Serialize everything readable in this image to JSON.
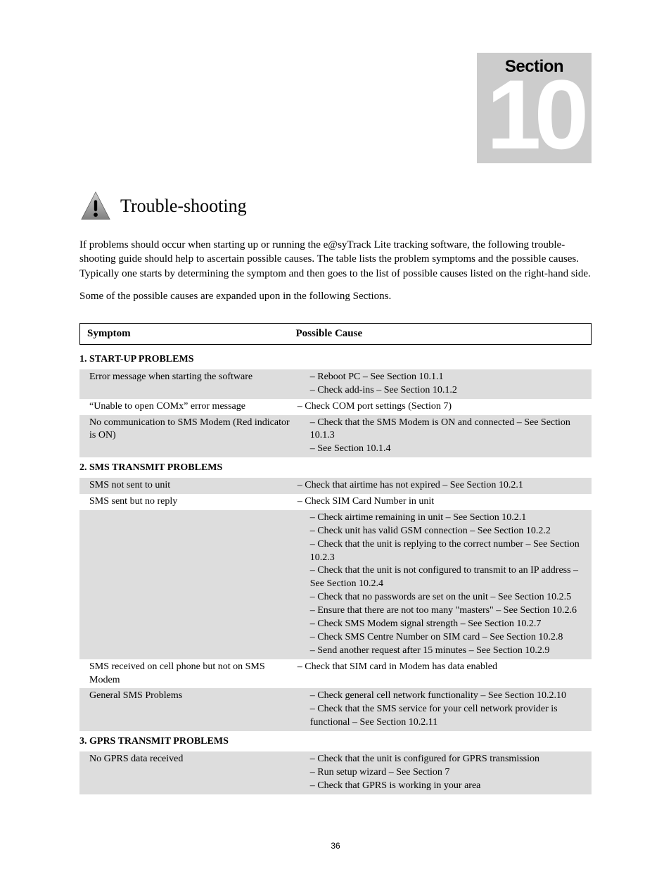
{
  "badge": {
    "label": "Section",
    "number": "10"
  },
  "title": "Trouble-shooting",
  "intro": {
    "p1": "If problems should occur when starting up or running the e@syTrack Lite tracking software, the following trouble-shooting guide should help to ascertain possible causes. The table lists the problem symptoms and the possible causes. Typically one starts by determining the symptom and then goes to the list of possible causes listed on the right-hand side.",
    "p2": "Some of the possible causes are expanded upon in the following Sections."
  },
  "headers": {
    "symptom": "Symptom",
    "cause": "Possible Cause"
  },
  "sections": [
    {
      "title": "1.  START-UP PROBLEMS",
      "shaded": false,
      "rows": [
        {
          "shaded": true,
          "symptom": "Error message when starting the software",
          "causes": [
            "Reboot PC – See Section 10.1.1",
            "Check add-ins – See Section 10.1.2"
          ]
        },
        {
          "shaded": false,
          "symptom": "“Unable to open COMx” error message",
          "causes": [
            "Check COM port settings (Section 7)"
          ]
        },
        {
          "shaded": true,
          "symptom": "No communication to SMS Modem (Red indicator is ON)",
          "causes": [
            "Check that the SMS Modem is ON and connected – See Section 10.1.3",
            "See Section 10.1.4"
          ]
        }
      ]
    },
    {
      "title": "2.  SMS TRANSMIT PROBLEMS",
      "shaded": false,
      "rows": [
        {
          "shaded": true,
          "symptom": "SMS not sent to unit",
          "causes": [
            "Check that airtime has not expired – See Section 10.2.1"
          ]
        },
        {
          "shaded": false,
          "symptom": "SMS sent but no reply",
          "causes": [
            "Check SIM Card Number in unit"
          ]
        },
        {
          "shaded": true,
          "symptom": "",
          "causes": [
            "Check airtime remaining in unit – See Section 10.2.1",
            "Check unit has valid GSM connection – See Section 10.2.2",
            "Check that the unit is replying to the correct number – See Section 10.2.3",
            "Check that the unit is not configured to transmit to an IP address – See Section 10.2.4",
            "Check that no passwords are set on the unit – See Section 10.2.5",
            "Ensure that there are not too many \"masters\" – See Section 10.2.6",
            "Check SMS Modem signal strength – See Section 10.2.7",
            "Check SMS Centre Number on SIM card – See Section 10.2.8",
            "Send another request after 15 minutes – See Section 10.2.9"
          ]
        },
        {
          "shaded": false,
          "symptom": "SMS received on cell phone but not on SMS Modem",
          "causes": [
            "Check that SIM card in Modem has data enabled"
          ]
        },
        {
          "shaded": true,
          "symptom": "General SMS Problems",
          "causes": [
            "Check general cell network functionality – See Section 10.2.10",
            "Check that the SMS service for your cell network provider is functional – See Section 10.2.11"
          ]
        }
      ]
    },
    {
      "title": "3.  GPRS TRANSMIT PROBLEMS",
      "shaded": false,
      "rows": [
        {
          "shaded": true,
          "symptom": "No GPRS data received",
          "causes": [
            "Check that the unit is configured for GPRS transmission",
            "Run setup wizard – See Section 7",
            "Check that GPRS is working in your area"
          ]
        }
      ]
    }
  ],
  "pageNumber": "36"
}
